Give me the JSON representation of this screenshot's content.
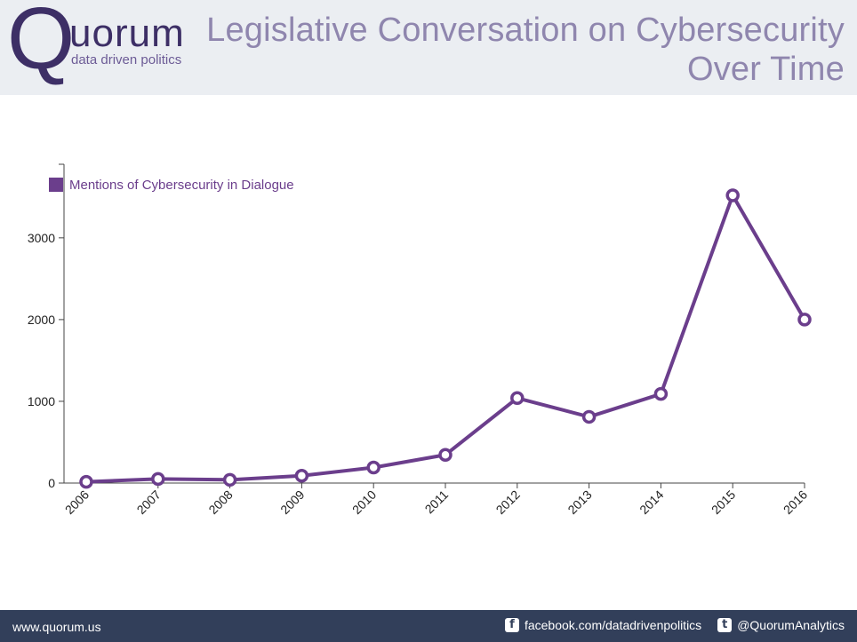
{
  "header": {
    "logo_letter": "Q",
    "logo_word": "uorum",
    "logo_tagline": "data driven politics",
    "title_line1": "Legislative Conversation on Cybersecurity",
    "title_line2": "Over Time"
  },
  "footer": {
    "website": "www.quorum.us",
    "facebook": "facebook.com/datadrivenpolitics",
    "twitter": "@QuorumAnalytics",
    "facebook_icon": "f",
    "twitter_icon": "t"
  },
  "colors": {
    "series": "#6b3e8c",
    "header_bg": "#ebeef2",
    "footer_bg": "#323f5a",
    "title": "#8f86ae",
    "logo": "#3d2f66"
  },
  "chart_data": {
    "type": "line",
    "title": "",
    "xlabel": "",
    "ylabel": "",
    "categories": [
      "2006",
      "2007",
      "2008",
      "2009",
      "2010",
      "2011",
      "2012",
      "2013",
      "2014",
      "2015",
      "2016"
    ],
    "series": [
      {
        "name": "Mentions of Cybersecurity in Dialogue",
        "values": [
          15,
          50,
          40,
          90,
          190,
          345,
          1040,
          810,
          1090,
          3520,
          2000
        ]
      }
    ],
    "yticks": [
      0,
      1000,
      2000,
      3000
    ],
    "ylim": [
      0,
      3900
    ],
    "legend": "top-left",
    "grid": false
  }
}
